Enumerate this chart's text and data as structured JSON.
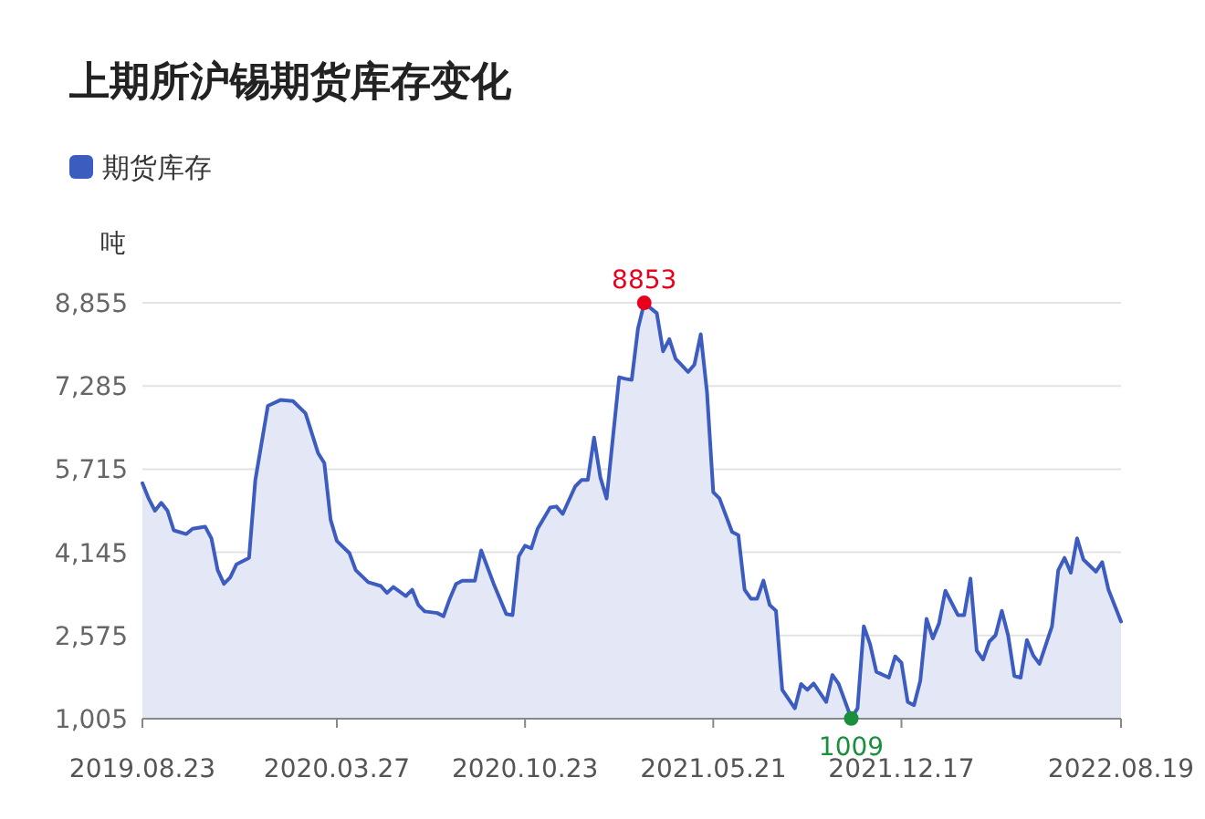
{
  "chart_data": {
    "type": "area",
    "title": "上期所沪锡期货库存变化",
    "ylabel": "吨",
    "x": [
      "2019-08-23",
      "2019-08-30",
      "2019-09-06",
      "2019-09-13",
      "2019-09-20",
      "2019-09-27",
      "2019-10-11",
      "2019-10-18",
      "2019-11-01",
      "2019-11-08",
      "2019-11-15",
      "2019-11-22",
      "2019-11-29",
      "2019-12-06",
      "2019-12-20",
      "2019-12-27",
      "2020-01-10",
      "2020-01-24",
      "2020-02-07",
      "2020-02-21",
      "2020-03-06",
      "2020-03-13",
      "2020-03-20",
      "2020-03-27",
      "2020-04-10",
      "2020-04-17",
      "2020-05-01",
      "2020-05-15",
      "2020-05-22",
      "2020-05-29",
      "2020-06-12",
      "2020-06-19",
      "2020-06-26",
      "2020-07-03",
      "2020-07-17",
      "2020-07-24",
      "2020-07-31",
      "2020-08-07",
      "2020-08-14",
      "2020-08-28",
      "2020-09-04",
      "2020-09-18",
      "2020-10-02",
      "2020-10-09",
      "2020-10-16",
      "2020-10-23",
      "2020-10-30",
      "2020-11-06",
      "2020-11-20",
      "2020-11-27",
      "2020-12-04",
      "2020-12-18",
      "2020-12-25",
      "2021-01-01",
      "2021-01-08",
      "2021-01-15",
      "2021-01-22",
      "2021-02-05",
      "2021-02-12",
      "2021-02-19",
      "2021-02-26",
      "2021-03-05",
      "2021-03-19",
      "2021-03-26",
      "2021-04-02",
      "2021-04-09",
      "2021-04-23",
      "2021-04-30",
      "2021-05-07",
      "2021-05-14",
      "2021-05-21",
      "2021-05-28",
      "2021-06-11",
      "2021-06-18",
      "2021-06-25",
      "2021-07-02",
      "2021-07-09",
      "2021-07-16",
      "2021-07-23",
      "2021-07-30",
      "2021-08-06",
      "2021-08-20",
      "2021-08-27",
      "2021-09-03",
      "2021-09-10",
      "2021-09-24",
      "2021-10-01",
      "2021-10-08",
      "2021-10-22",
      "2021-10-29",
      "2021-11-05",
      "2021-11-12",
      "2021-11-19",
      "2021-12-03",
      "2021-12-10",
      "2021-12-17",
      "2021-12-24",
      "2021-12-31",
      "2022-01-07",
      "2022-01-14",
      "2022-01-21",
      "2022-01-28",
      "2022-02-04",
      "2022-02-18",
      "2022-02-25",
      "2022-03-04",
      "2022-03-11",
      "2022-03-18",
      "2022-03-25",
      "2022-04-01",
      "2022-04-08",
      "2022-04-15",
      "2022-04-22",
      "2022-04-29",
      "2022-05-06",
      "2022-05-13",
      "2022-05-20",
      "2022-06-03",
      "2022-06-10",
      "2022-06-17",
      "2022-06-24",
      "2022-07-01",
      "2022-07-08",
      "2022-07-22",
      "2022-07-29",
      "2022-08-05",
      "2022-08-19"
    ],
    "series": [
      {
        "name": "期货库存",
        "color": "#3d5cc0",
        "values": [
          5450,
          5160,
          4930,
          5080,
          4930,
          4560,
          4490,
          4590,
          4630,
          4410,
          3810,
          3550,
          3670,
          3920,
          4040,
          5510,
          6910,
          7020,
          7000,
          6770,
          6020,
          5830,
          4760,
          4360,
          4130,
          3810,
          3580,
          3510,
          3380,
          3490,
          3320,
          3440,
          3150,
          3030,
          3000,
          2940,
          3270,
          3550,
          3610,
          3610,
          4180,
          3550,
          2980,
          2960,
          4070,
          4270,
          4220,
          4590,
          4990,
          5010,
          4870,
          5390,
          5510,
          5510,
          6310,
          5560,
          5160,
          7450,
          7420,
          7400,
          8370,
          8853,
          8660,
          7940,
          8170,
          7800,
          7550,
          7690,
          8260,
          7170,
          5280,
          5160,
          4530,
          4470,
          3440,
          3270,
          3270,
          3610,
          3150,
          3040,
          1550,
          1200,
          1660,
          1550,
          1670,
          1320,
          1830,
          1660,
          1009,
          1200,
          2750,
          2410,
          1890,
          1780,
          2180,
          2060,
          1320,
          1260,
          1720,
          2890,
          2520,
          2810,
          3420,
          2960,
          2960,
          3650,
          2290,
          2120,
          2460,
          2580,
          3040,
          2580,
          1810,
          1780,
          2490,
          2200,
          2040,
          2750,
          3810,
          4040,
          3760,
          4410,
          4010,
          3780,
          3960,
          3440,
          2840
        ]
      }
    ],
    "xlim": [
      "2019-08-23",
      "2022-08-19"
    ],
    "xticks": [
      {
        "value": "2019-08-23",
        "label": "2019.08.23"
      },
      {
        "value": "2020-03-27",
        "label": "2020.03.27"
      },
      {
        "value": "2020-10-23",
        "label": "2020.10.23"
      },
      {
        "value": "2021-05-21",
        "label": "2021.05.21"
      },
      {
        "value": "2021-12-17",
        "label": "2021.12.17"
      },
      {
        "value": "2022-08-19",
        "label": "2022.08.19"
      }
    ],
    "ylim": [
      1005,
      8855
    ],
    "yticks": [
      {
        "value": 1005,
        "label": "1,005"
      },
      {
        "value": 2575,
        "label": "2,575"
      },
      {
        "value": 4145,
        "label": "4,145"
      },
      {
        "value": 5715,
        "label": "5,715"
      },
      {
        "value": 7285,
        "label": "7,285"
      },
      {
        "value": 8855,
        "label": "8,855"
      }
    ],
    "annotations": [
      {
        "text": "8853",
        "x": "2021-03-05",
        "y": 8853
      },
      {
        "text": "1009",
        "x": "2021-10-22",
        "y": 1009
      }
    ],
    "grid": "y",
    "legend": "top left"
  }
}
